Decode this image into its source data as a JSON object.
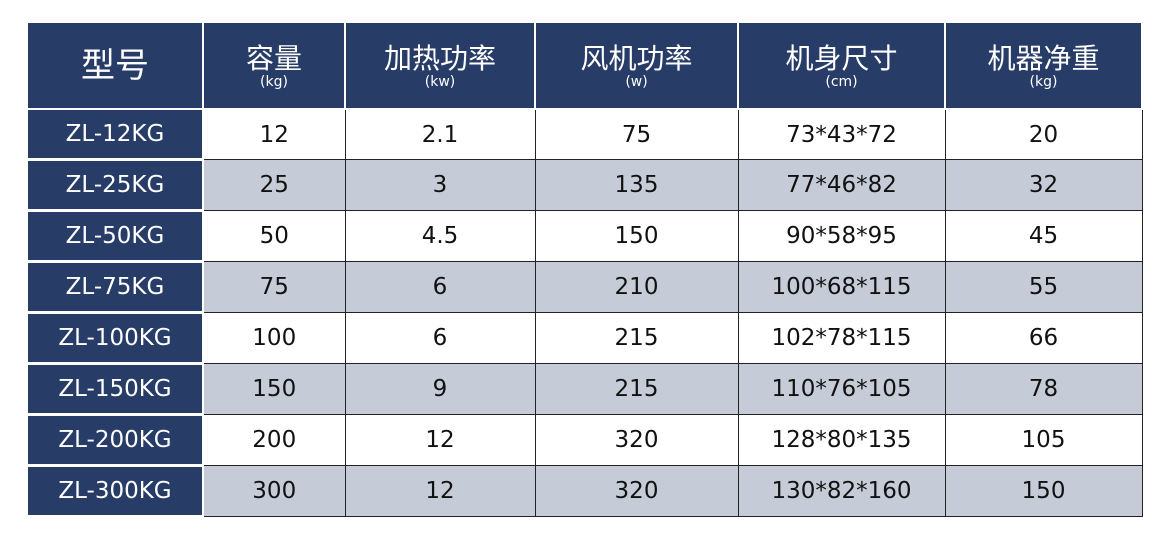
{
  "colors": {
    "header": "#283c68",
    "alt_row": "#c5ccd8"
  },
  "headers": [
    {
      "main": "型号",
      "unit": ""
    },
    {
      "main": "容量",
      "unit": "(kg)"
    },
    {
      "main": "加热功率",
      "unit": "(kw)"
    },
    {
      "main": "风机功率",
      "unit": "(w)"
    },
    {
      "main": "机身尺寸",
      "unit": "(cm)"
    },
    {
      "main": "机器净重",
      "unit": "(kg)"
    }
  ],
  "rows": [
    [
      "ZL-12KG",
      "12",
      "2.1",
      "75",
      "73*43*72",
      "20"
    ],
    [
      "ZL-25KG",
      "25",
      "3",
      "135",
      "77*46*82",
      "32"
    ],
    [
      "ZL-50KG",
      "50",
      "4.5",
      "150",
      "90*58*95",
      "45"
    ],
    [
      "ZL-75KG",
      "75",
      "6",
      "210",
      "100*68*115",
      "55"
    ],
    [
      "ZL-100KG",
      "100",
      "6",
      "215",
      "102*78*115",
      "66"
    ],
    [
      "ZL-150KG",
      "150",
      "9",
      "215",
      "110*76*105",
      "78"
    ],
    [
      "ZL-200KG",
      "200",
      "12",
      "320",
      "128*80*135",
      "105"
    ],
    [
      "ZL-300KG",
      "300",
      "12",
      "320",
      "130*82*160",
      "150"
    ]
  ]
}
